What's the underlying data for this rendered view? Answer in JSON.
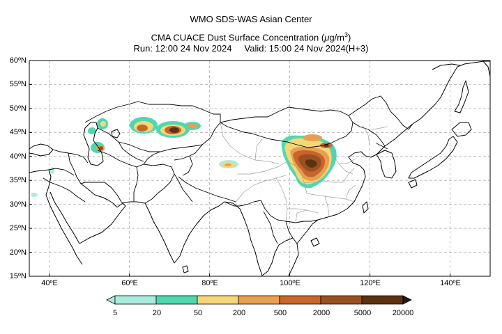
{
  "title": {
    "line1": "WMO SDS-WAS Asian Center",
    "line2_prefix": "CMA CUACE Dust Surface Concentration (",
    "line2_unit_mu": "μ",
    "line2_unit_rest": "g/m",
    "line2_unit_exp": "3",
    "line2_suffix": ")",
    "line3": "Run: 12:00 24 Nov 2024     Valid: 15:00 24 Nov 2024(H+3)"
  },
  "map": {
    "lon_range": [
      35,
      150
    ],
    "lat_range": [
      15,
      60
    ],
    "lat_ticks": [
      "60ºN",
      "55ºN",
      "50ºN",
      "45ºN",
      "40ºN",
      "35ºN",
      "30ºN",
      "25ºN",
      "20ºN",
      "15ºN"
    ],
    "lon_ticks": [
      "40ºE",
      "60ºE",
      "80ºE",
      "100ºE",
      "120ºE",
      "140ºE"
    ],
    "grid": true
  },
  "colorbar": {
    "levels": [
      "5",
      "20",
      "50",
      "200",
      "500",
      "2000",
      "5000",
      "20000"
    ],
    "colors": [
      "#a8ece0",
      "#4fd8b0",
      "#f5d77a",
      "#e8a050",
      "#c8652a",
      "#9a5020",
      "#5e3210",
      "#2a180a"
    ]
  },
  "dust_colors": {
    "c1": "#a8ece0",
    "c2": "#4fd8b0",
    "c3": "#f5d77a",
    "c4": "#e8a050",
    "c5": "#c8652a",
    "c6": "#9a5020",
    "c7": "#5e3210"
  }
}
